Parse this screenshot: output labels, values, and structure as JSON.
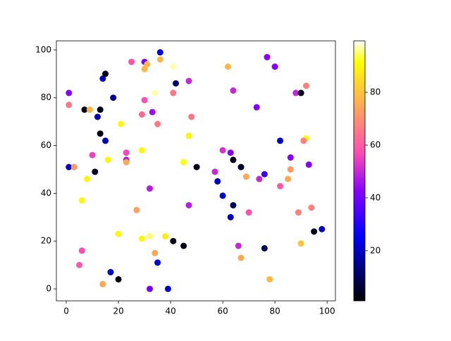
{
  "chart_data": {
    "type": "scatter",
    "colormap": "gnuplot2",
    "grid": false,
    "x": [
      1,
      1,
      1,
      3,
      7,
      9,
      13,
      12,
      14,
      15,
      18,
      13,
      15,
      10,
      11,
      8,
      6,
      6,
      5,
      17,
      20,
      14,
      16,
      21,
      25,
      30,
      30,
      31,
      36,
      36,
      41,
      42,
      41,
      34,
      30,
      33,
      29,
      35,
      29,
      23,
      23,
      23,
      32,
      27,
      20,
      29,
      32,
      38,
      34,
      35,
      41,
      45,
      32,
      39,
      47,
      48,
      47,
      45,
      50,
      47,
      62,
      64,
      60,
      63,
      64,
      57,
      67,
      58,
      69,
      60,
      64,
      63,
      70,
      66,
      67,
      77,
      80,
      73,
      88,
      90,
      92,
      82,
      92,
      91,
      86,
      93,
      86,
      76,
      74,
      85,
      82,
      89,
      94,
      95,
      98,
      90,
      76,
      78
    ],
    "y": [
      82,
      77,
      51,
      51,
      75,
      75,
      75,
      72,
      88,
      90,
      80,
      65,
      62,
      56,
      49,
      46,
      37,
      16,
      10,
      7,
      4,
      2,
      54,
      69,
      95,
      95,
      92,
      94,
      96,
      99,
      93,
      86,
      82,
      82,
      79,
      74,
      73,
      69,
      58,
      57,
      54,
      53,
      42,
      33,
      23,
      21,
      22,
      22,
      15,
      11,
      20,
      18,
      0,
      0,
      87,
      72,
      64,
      53,
      51,
      35,
      93,
      83,
      58,
      57,
      54,
      49,
      51,
      45,
      47,
      39,
      35,
      30,
      32,
      18,
      13,
      97,
      93,
      76,
      82,
      82,
      85,
      62,
      63,
      62,
      55,
      52,
      50,
      48,
      46,
      46,
      43,
      32,
      34,
      24,
      25,
      19,
      17,
      4
    ],
    "c": [
      42,
      65,
      20,
      72,
      3,
      78,
      3,
      18,
      20,
      3,
      15,
      2,
      20,
      55,
      3,
      90,
      90,
      57,
      60,
      20,
      3,
      75,
      90,
      90,
      58,
      40,
      78,
      78,
      78,
      22,
      97,
      12,
      65,
      97,
      58,
      45,
      63,
      66,
      90,
      56,
      47,
      75,
      48,
      73,
      90,
      90,
      95,
      88,
      75,
      22,
      3,
      3,
      40,
      20,
      50,
      65,
      90,
      92,
      3,
      48,
      78,
      50,
      52,
      42,
      3,
      50,
      5,
      20,
      75,
      20,
      10,
      20,
      58,
      50,
      75,
      42,
      42,
      42,
      50,
      3,
      67,
      20,
      92,
      67,
      42,
      42,
      72,
      32,
      50,
      75,
      60,
      67,
      67,
      3,
      20,
      80,
      10,
      78
    ],
    "xlim": [
      -3.8,
      103.2
    ],
    "ylim": [
      -5,
      103.8
    ],
    "clim": [
      1,
      99.5
    ],
    "xticks": [
      0,
      20,
      40,
      60,
      80,
      100
    ],
    "yticks": [
      0,
      20,
      40,
      60,
      80,
      100
    ],
    "cticks": [
      20,
      40,
      60,
      80
    ]
  }
}
